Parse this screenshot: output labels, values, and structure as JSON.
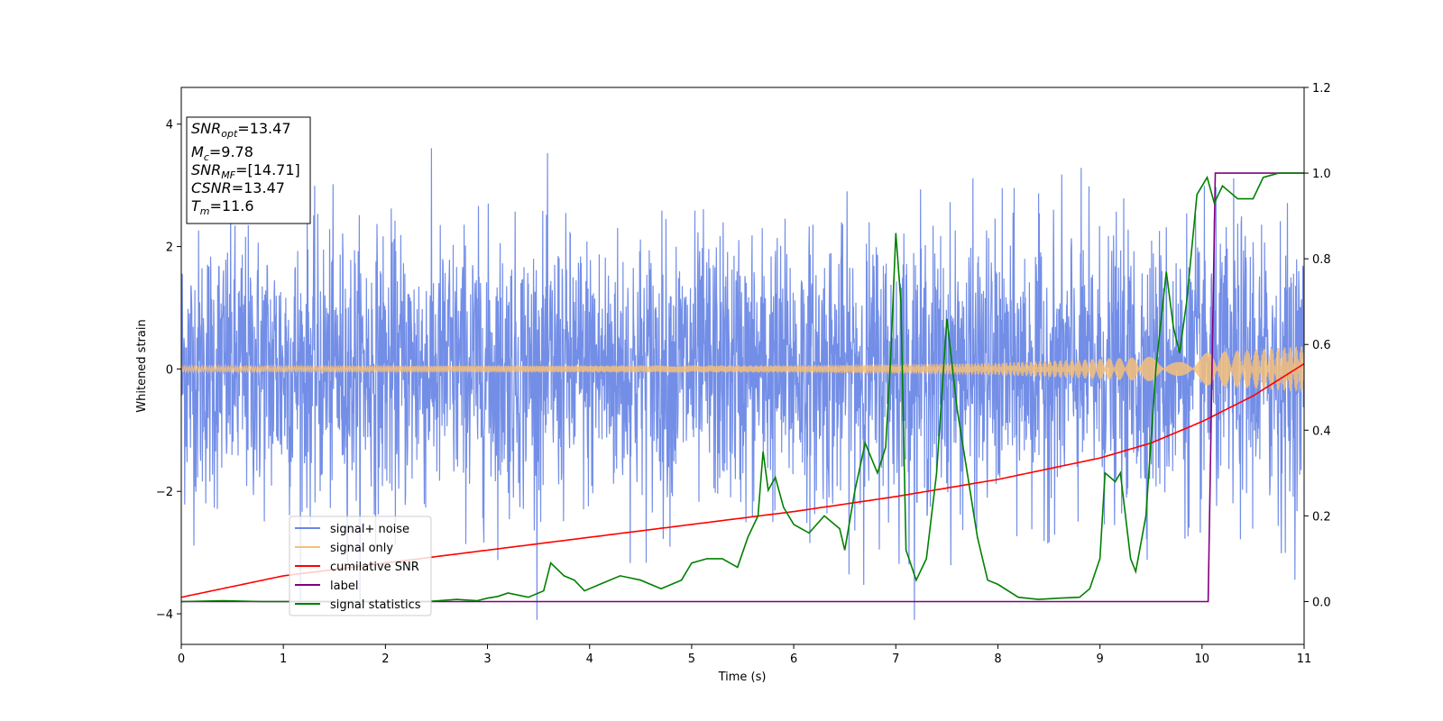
{
  "chart_data": {
    "type": "line",
    "xlabel": "Time (s)",
    "ylabel": "Whitened strain",
    "xlim": [
      0,
      11
    ],
    "ylim_left": [
      -4.5,
      4.6
    ],
    "ylim_right": [
      -0.1,
      1.2
    ],
    "x_ticks": [
      "0",
      "1",
      "2",
      "3",
      "4",
      "5",
      "6",
      "7",
      "8",
      "9",
      "10",
      "11"
    ],
    "y_left_ticks": [
      "−4",
      "−2",
      "0",
      "2",
      "4"
    ],
    "y_right_ticks": [
      "0.0",
      "0.2",
      "0.4",
      "0.6",
      "0.8",
      "1.0",
      "1.2"
    ],
    "annotation": {
      "lines": [
        {
          "sym": "SNR",
          "sub": "opt",
          "text": "=13.47"
        },
        {
          "sym": "M",
          "sub": "c",
          "text": "=9.78"
        },
        {
          "sym": "SNR",
          "sub": "MF",
          "text": "=[14.71]"
        },
        {
          "sym": "CSNR",
          "sub": "",
          "text": "=13.47"
        },
        {
          "sym": "T",
          "sub": "m",
          "text": "=11.6"
        }
      ]
    },
    "legend_position": "lower-left",
    "series": [
      {
        "name": "signal+ noise",
        "color": "#6b88e6",
        "axis": "left",
        "description_hint": "dense white-noise strain, std ~1.1, range roughly -4.1 to 4.2",
        "noise_std": 1.1,
        "n_points": 3300
      },
      {
        "name": "signal only",
        "color": "#f5c07a",
        "axis": "left",
        "chirp_amplitude": [
          [
            0,
            0.05
          ],
          [
            6,
            0.06
          ],
          [
            8,
            0.1
          ],
          [
            9.5,
            0.2
          ],
          [
            11,
            0.38
          ]
        ]
      },
      {
        "name": "cumilative SNR",
        "color": "#ff0000",
        "axis": "right",
        "points": [
          [
            0,
            0.01
          ],
          [
            1,
            0.06
          ],
          [
            2,
            0.09
          ],
          [
            3,
            0.12
          ],
          [
            4,
            0.15
          ],
          [
            5,
            0.18
          ],
          [
            6,
            0.21
          ],
          [
            7,
            0.245
          ],
          [
            8,
            0.285
          ],
          [
            9,
            0.335
          ],
          [
            9.5,
            0.37
          ],
          [
            10,
            0.42
          ],
          [
            10.5,
            0.48
          ],
          [
            11,
            0.555
          ]
        ]
      },
      {
        "name": "label",
        "color": "#800080",
        "axis": "right",
        "points": [
          [
            0,
            0
          ],
          [
            10.06,
            0
          ],
          [
            10.13,
            1.0
          ],
          [
            11,
            1.0
          ]
        ]
      },
      {
        "name": "signal statistics",
        "color": "#008000",
        "axis": "right",
        "points": [
          [
            0,
            0
          ],
          [
            0.4,
            0.002
          ],
          [
            0.8,
            0
          ],
          [
            1.2,
            0
          ],
          [
            1.6,
            0
          ],
          [
            2.0,
            0
          ],
          [
            2.4,
            0
          ],
          [
            2.7,
            0.005
          ],
          [
            2.9,
            0.002
          ],
          [
            3.0,
            0.008
          ],
          [
            3.1,
            0.012
          ],
          [
            3.2,
            0.02
          ],
          [
            3.4,
            0.01
          ],
          [
            3.55,
            0.025
          ],
          [
            3.62,
            0.09
          ],
          [
            3.75,
            0.06
          ],
          [
            3.85,
            0.05
          ],
          [
            3.95,
            0.025
          ],
          [
            4.1,
            0.04
          ],
          [
            4.3,
            0.06
          ],
          [
            4.5,
            0.05
          ],
          [
            4.7,
            0.03
          ],
          [
            4.9,
            0.05
          ],
          [
            5.0,
            0.09
          ],
          [
            5.15,
            0.1
          ],
          [
            5.3,
            0.1
          ],
          [
            5.45,
            0.08
          ],
          [
            5.55,
            0.15
          ],
          [
            5.65,
            0.2
          ],
          [
            5.7,
            0.35
          ],
          [
            5.75,
            0.26
          ],
          [
            5.82,
            0.29
          ],
          [
            5.9,
            0.22
          ],
          [
            6.0,
            0.18
          ],
          [
            6.15,
            0.16
          ],
          [
            6.3,
            0.2
          ],
          [
            6.45,
            0.17
          ],
          [
            6.5,
            0.12
          ],
          [
            6.6,
            0.26
          ],
          [
            6.7,
            0.37
          ],
          [
            6.82,
            0.3
          ],
          [
            6.9,
            0.36
          ],
          [
            6.95,
            0.57
          ],
          [
            7.0,
            0.86
          ],
          [
            7.05,
            0.7
          ],
          [
            7.1,
            0.12
          ],
          [
            7.2,
            0.05
          ],
          [
            7.3,
            0.1
          ],
          [
            7.4,
            0.3
          ],
          [
            7.5,
            0.66
          ],
          [
            7.6,
            0.45
          ],
          [
            7.7,
            0.3
          ],
          [
            7.8,
            0.15
          ],
          [
            7.9,
            0.05
          ],
          [
            8.0,
            0.04
          ],
          [
            8.2,
            0.01
          ],
          [
            8.4,
            0.005
          ],
          [
            8.6,
            0.008
          ],
          [
            8.8,
            0.01
          ],
          [
            8.9,
            0.03
          ],
          [
            9.0,
            0.1
          ],
          [
            9.05,
            0.3
          ],
          [
            9.15,
            0.28
          ],
          [
            9.2,
            0.3
          ],
          [
            9.3,
            0.1
          ],
          [
            9.35,
            0.07
          ],
          [
            9.45,
            0.2
          ],
          [
            9.55,
            0.55
          ],
          [
            9.65,
            0.77
          ],
          [
            9.72,
            0.64
          ],
          [
            9.78,
            0.58
          ],
          [
            9.85,
            0.7
          ],
          [
            9.95,
            0.95
          ],
          [
            10.05,
            0.99
          ],
          [
            10.12,
            0.93
          ],
          [
            10.2,
            0.97
          ],
          [
            10.35,
            0.94
          ],
          [
            10.5,
            0.94
          ],
          [
            10.6,
            0.99
          ],
          [
            10.75,
            1.0
          ],
          [
            11,
            1.0
          ]
        ]
      }
    ]
  }
}
